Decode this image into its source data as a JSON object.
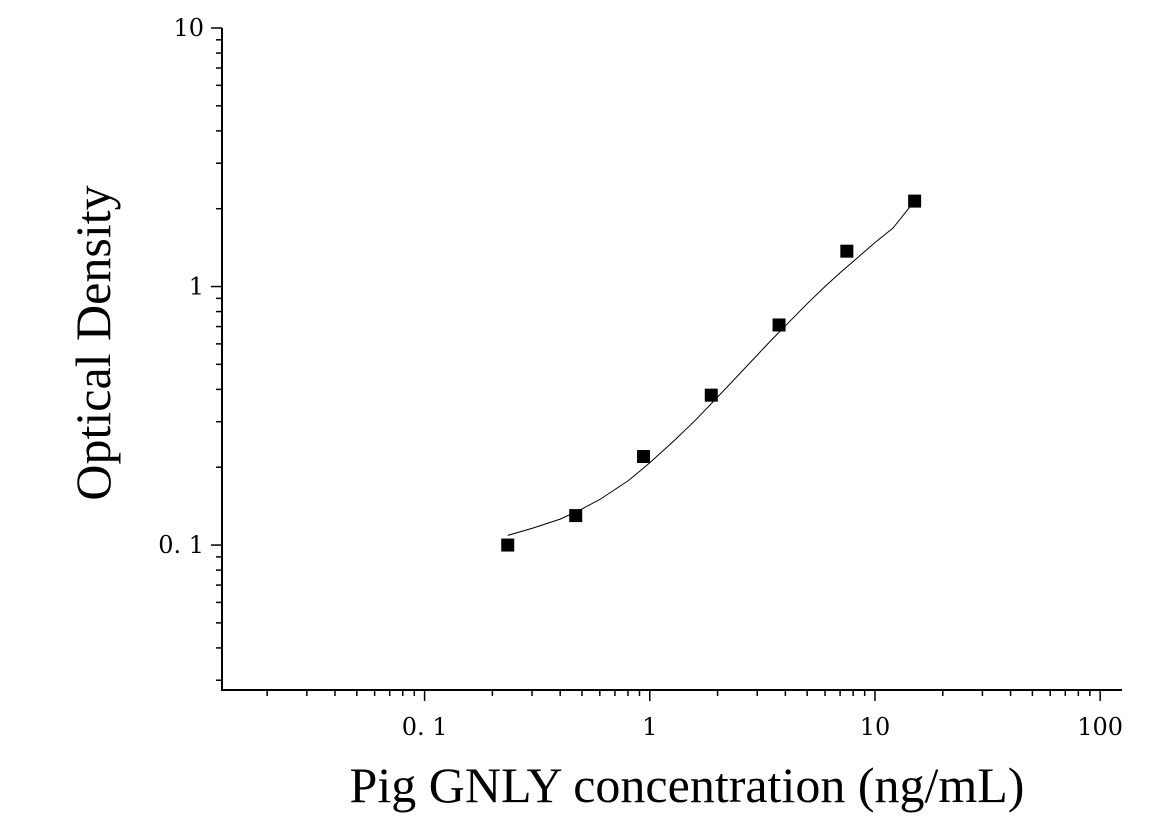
{
  "chart_data": {
    "type": "scatter",
    "title": "",
    "xlabel": "Pig GNLY concentration (ng/mL)",
    "ylabel": "Optical Density",
    "x_scale": "log",
    "y_scale": "log",
    "xlim": [
      0.0126,
      125
    ],
    "ylim": [
      0.0275,
      10
    ],
    "x_ticks": [
      {
        "value": 0.1,
        "label": "0. 1"
      },
      {
        "value": 1,
        "label": "1"
      },
      {
        "value": 10,
        "label": "10"
      },
      {
        "value": 100,
        "label": "100"
      }
    ],
    "y_ticks": [
      {
        "value": 0.1,
        "label": "0. 1"
      },
      {
        "value": 1,
        "label": "1"
      },
      {
        "value": 10,
        "label": "10"
      }
    ],
    "grid": false,
    "legend": "none",
    "series": [
      {
        "x": [
          0.234,
          0.469,
          0.938,
          1.875,
          3.75,
          7.5,
          15
        ],
        "y": [
          0.1,
          0.13,
          0.22,
          0.38,
          0.71,
          1.37,
          2.14
        ]
      }
    ],
    "fit_curve": {
      "x": [
        0.234,
        0.3,
        0.4,
        0.5,
        0.6,
        0.8,
        1.0,
        1.3,
        1.6,
        2.0,
        2.5,
        3.0,
        3.5,
        4.0,
        5.0,
        6.0,
        7.0,
        8.0,
        10.0,
        12.0,
        15.0
      ],
      "y": [
        0.109,
        0.116,
        0.126,
        0.138,
        0.15,
        0.177,
        0.208,
        0.256,
        0.305,
        0.374,
        0.459,
        0.543,
        0.626,
        0.705,
        0.858,
        1.0,
        1.13,
        1.25,
        1.48,
        1.68,
        2.14
      ]
    },
    "colors": {
      "marker": "#000000",
      "line": "#000000",
      "axis": "#000000"
    }
  }
}
